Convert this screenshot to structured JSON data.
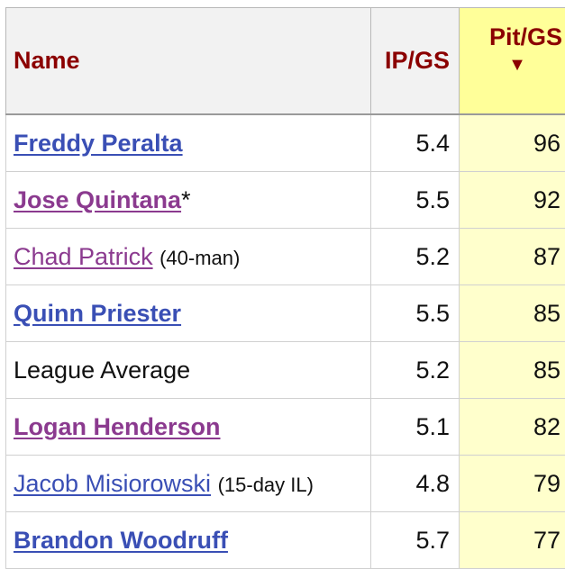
{
  "columns": {
    "name": "Name",
    "ip_gs": "IP/GS",
    "pit_gs": "Pit/GS",
    "sort_indicator": "▼"
  },
  "rows": [
    {
      "name": "Freddy Peralta",
      "suffix": "",
      "note": "",
      "ip_gs": "5.4",
      "pit_gs": "96"
    },
    {
      "name": "Jose Quintana",
      "suffix": "*",
      "note": "",
      "ip_gs": "5.5",
      "pit_gs": "92"
    },
    {
      "name": "Chad Patrick",
      "suffix": "",
      "note": "(40-man)",
      "ip_gs": "5.2",
      "pit_gs": "87"
    },
    {
      "name": "Quinn Priester",
      "suffix": "",
      "note": "",
      "ip_gs": "5.5",
      "pit_gs": "85"
    },
    {
      "name": "League Average",
      "suffix": "",
      "note": "",
      "ip_gs": "5.2",
      "pit_gs": "85"
    },
    {
      "name": "Logan Henderson",
      "suffix": "",
      "note": "",
      "ip_gs": "5.1",
      "pit_gs": "82"
    },
    {
      "name": "Jacob Misiorowski",
      "suffix": "",
      "note": "(15-day IL)",
      "ip_gs": "4.8",
      "pit_gs": "79"
    },
    {
      "name": "Brandon Woodruff",
      "suffix": "",
      "note": "",
      "ip_gs": "5.7",
      "pit_gs": "77"
    }
  ],
  "colors": {
    "header_text": "#8b0000",
    "link_blue": "#3a4fb5",
    "link_visited": "#8b3a8f",
    "sort_header_bg": "#ffff99",
    "sort_col_bg": "#ffffcc"
  }
}
